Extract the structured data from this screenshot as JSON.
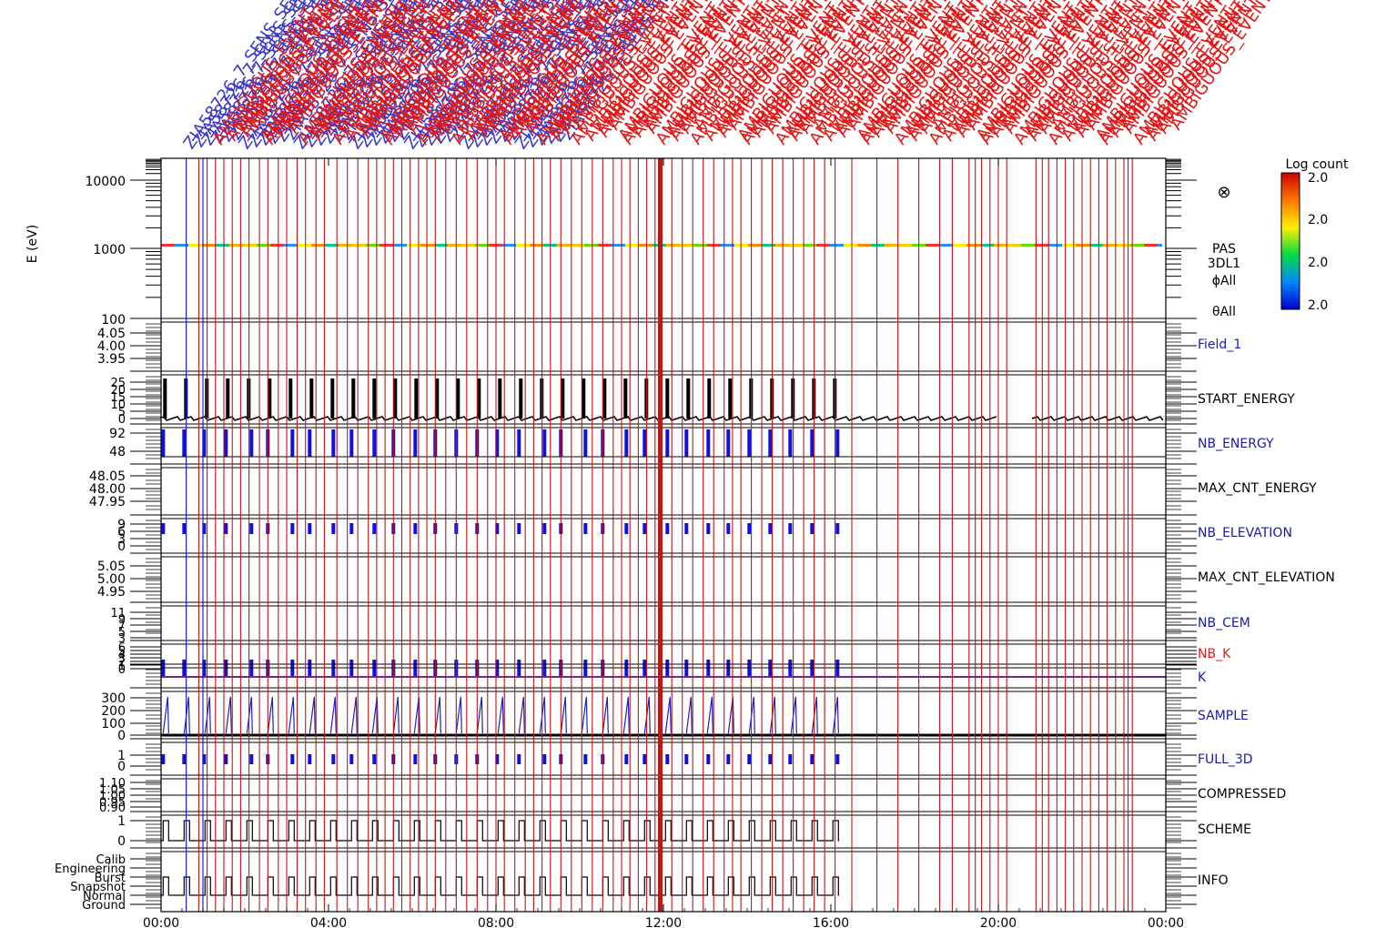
{
  "chart_data": {
    "type": "line",
    "title": "",
    "xlabel": "",
    "x_range_hours": [
      0,
      24
    ],
    "x_ticks": [
      "00:00",
      "04:00",
      "08:00",
      "12:00",
      "16:00",
      "20:00",
      "00:00"
    ],
    "top_labels": {
      "blue_sample": "ZIA58726_7_SENS_SEL",
      "red_sample": "AMBIGUOUS_EVENT"
    },
    "spectrogram": {
      "ylabel": "E (eV)",
      "ytick_labels": [
        "10000",
        "1000",
        "100"
      ],
      "side_labels": [
        "PAS",
        "3DL1",
        "ϕAll",
        "θAll"
      ],
      "symbol": "⊗",
      "colorbar_title": "Log count",
      "colorbar_ticks": [
        "2.0",
        "2.0",
        "2.0",
        "2.0"
      ],
      "band_energy_ev": 1100
    },
    "panels": [
      {
        "name": "Field_1",
        "color": "#1a1aa8",
        "ticks": [
          "4.05",
          "4.00",
          "3.95"
        ]
      },
      {
        "name": "START_ENERGY",
        "color": "#000000",
        "ticks": [
          "25",
          "20",
          "15",
          "10",
          "5",
          "0"
        ]
      },
      {
        "name": "NB_ENERGY",
        "color": "#1a1aa8",
        "ticks": [
          "92",
          "48"
        ]
      },
      {
        "name": "MAX_CNT_ENERGY",
        "color": "#000000",
        "ticks": [
          "48.05",
          "48.00",
          "47.95"
        ]
      },
      {
        "name": "NB_ELEVATION",
        "color": "#1a1aa8",
        "ticks": [
          "9",
          "6",
          "3",
          "0"
        ]
      },
      {
        "name": "MAX_CNT_ELEVATION",
        "color": "#000000",
        "ticks": [
          "5.05",
          "5.00",
          "4.95"
        ]
      },
      {
        "name": "NB_CEM",
        "color": "#1a1aa8",
        "ticks": [
          "11",
          "9",
          "7",
          "5",
          "3"
        ]
      },
      {
        "name": "NB_K",
        "color": "#e02020",
        "ticks": [
          "6",
          "5",
          "4",
          "3",
          "2",
          "1",
          "0"
        ]
      },
      {
        "name": "K",
        "color": "#1a1aa8",
        "ticks": []
      },
      {
        "name": "SAMPLE",
        "color": "#1a1aa8",
        "ticks": [
          "300",
          "200",
          "100",
          "0"
        ]
      },
      {
        "name": "FULL_3D",
        "color": "#1a1aa8",
        "ticks": [
          "1",
          "0"
        ]
      },
      {
        "name": "COMPRESSED",
        "color": "#000000",
        "ticks": [
          "1.10",
          "1.05",
          "1.00",
          "0.95",
          "0.90"
        ]
      },
      {
        "name": "SCHEME",
        "color": "#000000",
        "ticks": [
          "1",
          "0"
        ]
      },
      {
        "name": "INFO",
        "color": "#000000",
        "ticks": [
          "Calib",
          "Engineering",
          "Burst",
          "Snapshot",
          "Normal",
          "Ground"
        ]
      }
    ],
    "periodic_activity_hours": [
      0.05,
      1.05,
      2.05,
      3.05,
      4.05,
      5.05,
      6.05,
      7.05,
      8.05,
      9.05,
      10.05,
      11.05,
      12.05,
      13.05,
      14.05,
      15.05,
      16.05
    ],
    "blue_event_hours": [
      0.6,
      1.0
    ],
    "red_event_hours": [
      0.9,
      1.1,
      1.3,
      1.5,
      1.7,
      1.9,
      2.1,
      2.35,
      2.55,
      2.8,
      3.0,
      3.25,
      3.45,
      3.7,
      3.9,
      4.2,
      4.45,
      4.7,
      4.95,
      5.15,
      5.35,
      5.55,
      5.75,
      5.95,
      6.15,
      6.35,
      6.55,
      6.8,
      7.05,
      7.3,
      7.55,
      7.8,
      8.0,
      8.2,
      8.45,
      8.7,
      8.9,
      9.1,
      9.3,
      9.55,
      9.8,
      10.05,
      10.3,
      10.55,
      10.8,
      11.0,
      11.2,
      11.4,
      11.6,
      11.8,
      11.9,
      11.95,
      12.2,
      12.45,
      12.7,
      12.95,
      13.2,
      13.45,
      13.65,
      13.85,
      14.1,
      14.35,
      14.6,
      14.85,
      15.1,
      15.35,
      15.6,
      15.85,
      16.1,
      16.5,
      17.1,
      17.6,
      18.1,
      18.6,
      18.9,
      19.3,
      19.45,
      19.6,
      19.8,
      20.0,
      20.2,
      20.9,
      21.05,
      21.2,
      21.4,
      21.6,
      21.8,
      22.0,
      22.2,
      22.4,
      22.6,
      22.8,
      23.0,
      23.1,
      23.2
    ],
    "gap_hours": [
      20.0,
      20.8
    ]
  }
}
